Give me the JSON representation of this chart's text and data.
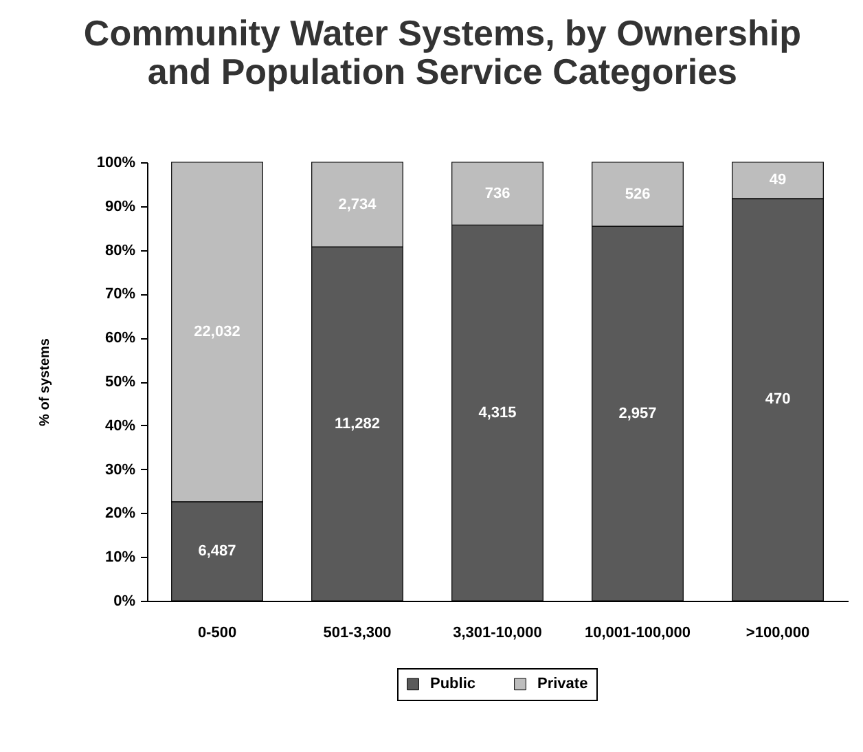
{
  "chart_data": {
    "type": "bar",
    "title": "Community Water Systems, by Ownership and Population Service Categories",
    "ylabel": "% of systems",
    "categories": [
      "0-500",
      "501-3,300",
      "3,301-10,000",
      "10,001-100,000",
      ">100,000"
    ],
    "stacked": true,
    "ylim": [
      0,
      100
    ],
    "yticks": [
      {
        "value": 0,
        "label": "0%"
      },
      {
        "value": 10,
        "label": "10%"
      },
      {
        "value": 20,
        "label": "20%"
      },
      {
        "value": 30,
        "label": "30%"
      },
      {
        "value": 40,
        "label": "40%"
      },
      {
        "value": 50,
        "label": "50%"
      },
      {
        "value": 60,
        "label": "60%"
      },
      {
        "value": 70,
        "label": "70%"
      },
      {
        "value": 80,
        "label": "80%"
      },
      {
        "value": 90,
        "label": "90%"
      },
      {
        "value": 100,
        "label": "100%"
      }
    ],
    "grid": false,
    "legend": "bottom",
    "series": [
      {
        "name": "Public",
        "color": "#5a5a5a",
        "values": [
          22.6,
          80.7,
          85.7,
          85.4,
          91.7
        ]
      },
      {
        "name": "Private",
        "color": "#bdbdbd",
        "values": [
          77.4,
          19.3,
          14.3,
          14.6,
          8.3
        ]
      }
    ],
    "annotations": [
      "6,487",
      "11,282",
      "4,315",
      "2,957",
      "470",
      "22,032",
      "2,734",
      "736",
      "526",
      "49"
    ]
  }
}
